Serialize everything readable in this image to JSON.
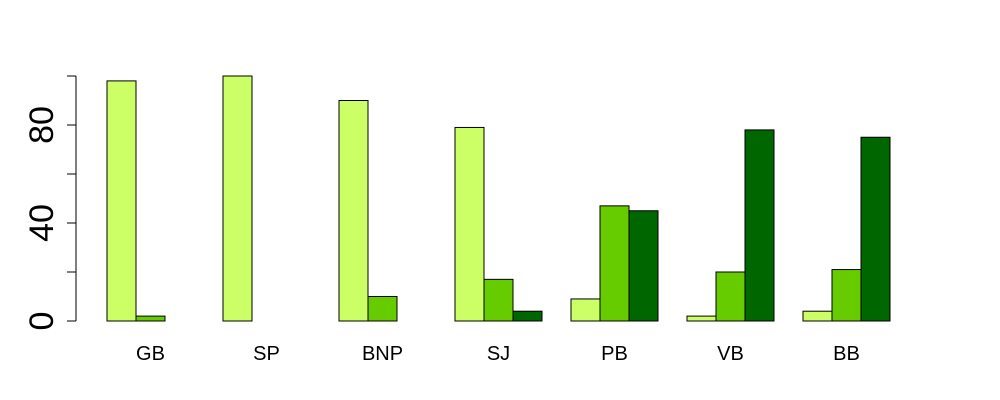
{
  "chart_data": {
    "type": "bar",
    "mode": "grouped",
    "categories": [
      "GB",
      "SP",
      "BNP",
      "SJ",
      "PB",
      "VB",
      "BB"
    ],
    "series": [
      {
        "color": "#CCFF66",
        "values": [
          98,
          100,
          90,
          79,
          9,
          2,
          4
        ]
      },
      {
        "color": "#66CC00",
        "values": [
          2,
          0,
          10,
          17,
          47,
          20,
          21
        ]
      },
      {
        "color": "#006600",
        "values": [
          0,
          0,
          0,
          4,
          45,
          78,
          75
        ]
      }
    ],
    "yticks": [
      0,
      40,
      80
    ],
    "ylim": [
      0,
      100
    ],
    "bar_outline": "#000000",
    "title": "",
    "xlabel": "",
    "ylabel": "",
    "legend": "none",
    "grid": false
  }
}
